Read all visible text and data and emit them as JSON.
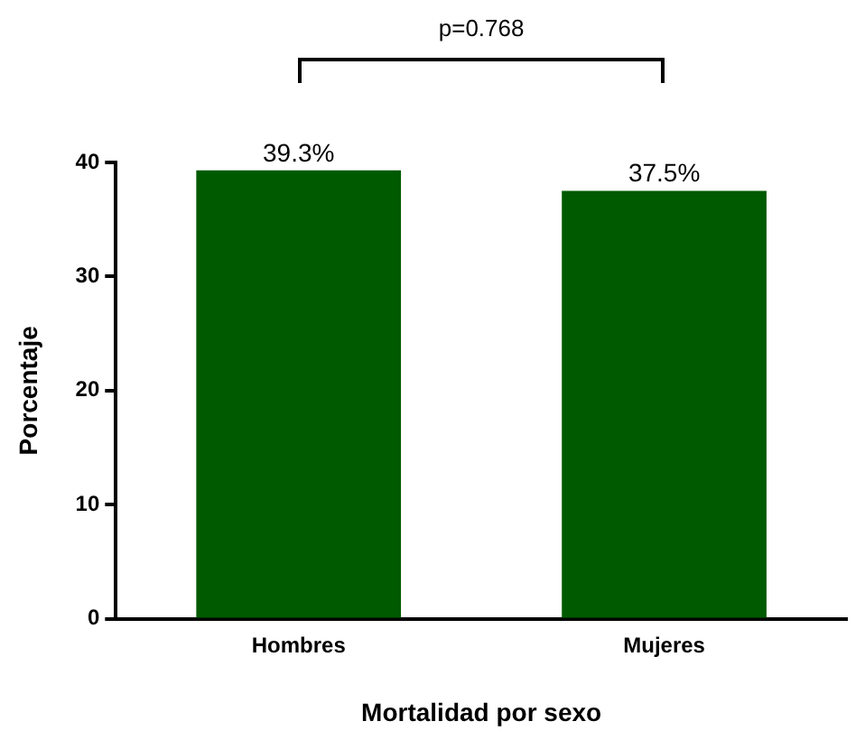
{
  "chart_data": {
    "type": "bar",
    "xlabel": "Mortalidad por sexo",
    "ylabel": "Porcentaje",
    "categories": [
      "Hombres",
      "Mujeres"
    ],
    "values": [
      39.3,
      37.5
    ],
    "value_labels": [
      "39.3%",
      "37.5%"
    ],
    "color": "#005a00",
    "ylim": [
      0,
      40
    ],
    "yticks": [
      0,
      10,
      20,
      30,
      40
    ],
    "grid": false,
    "legend": false,
    "annotations": [
      "p=0.768"
    ]
  }
}
